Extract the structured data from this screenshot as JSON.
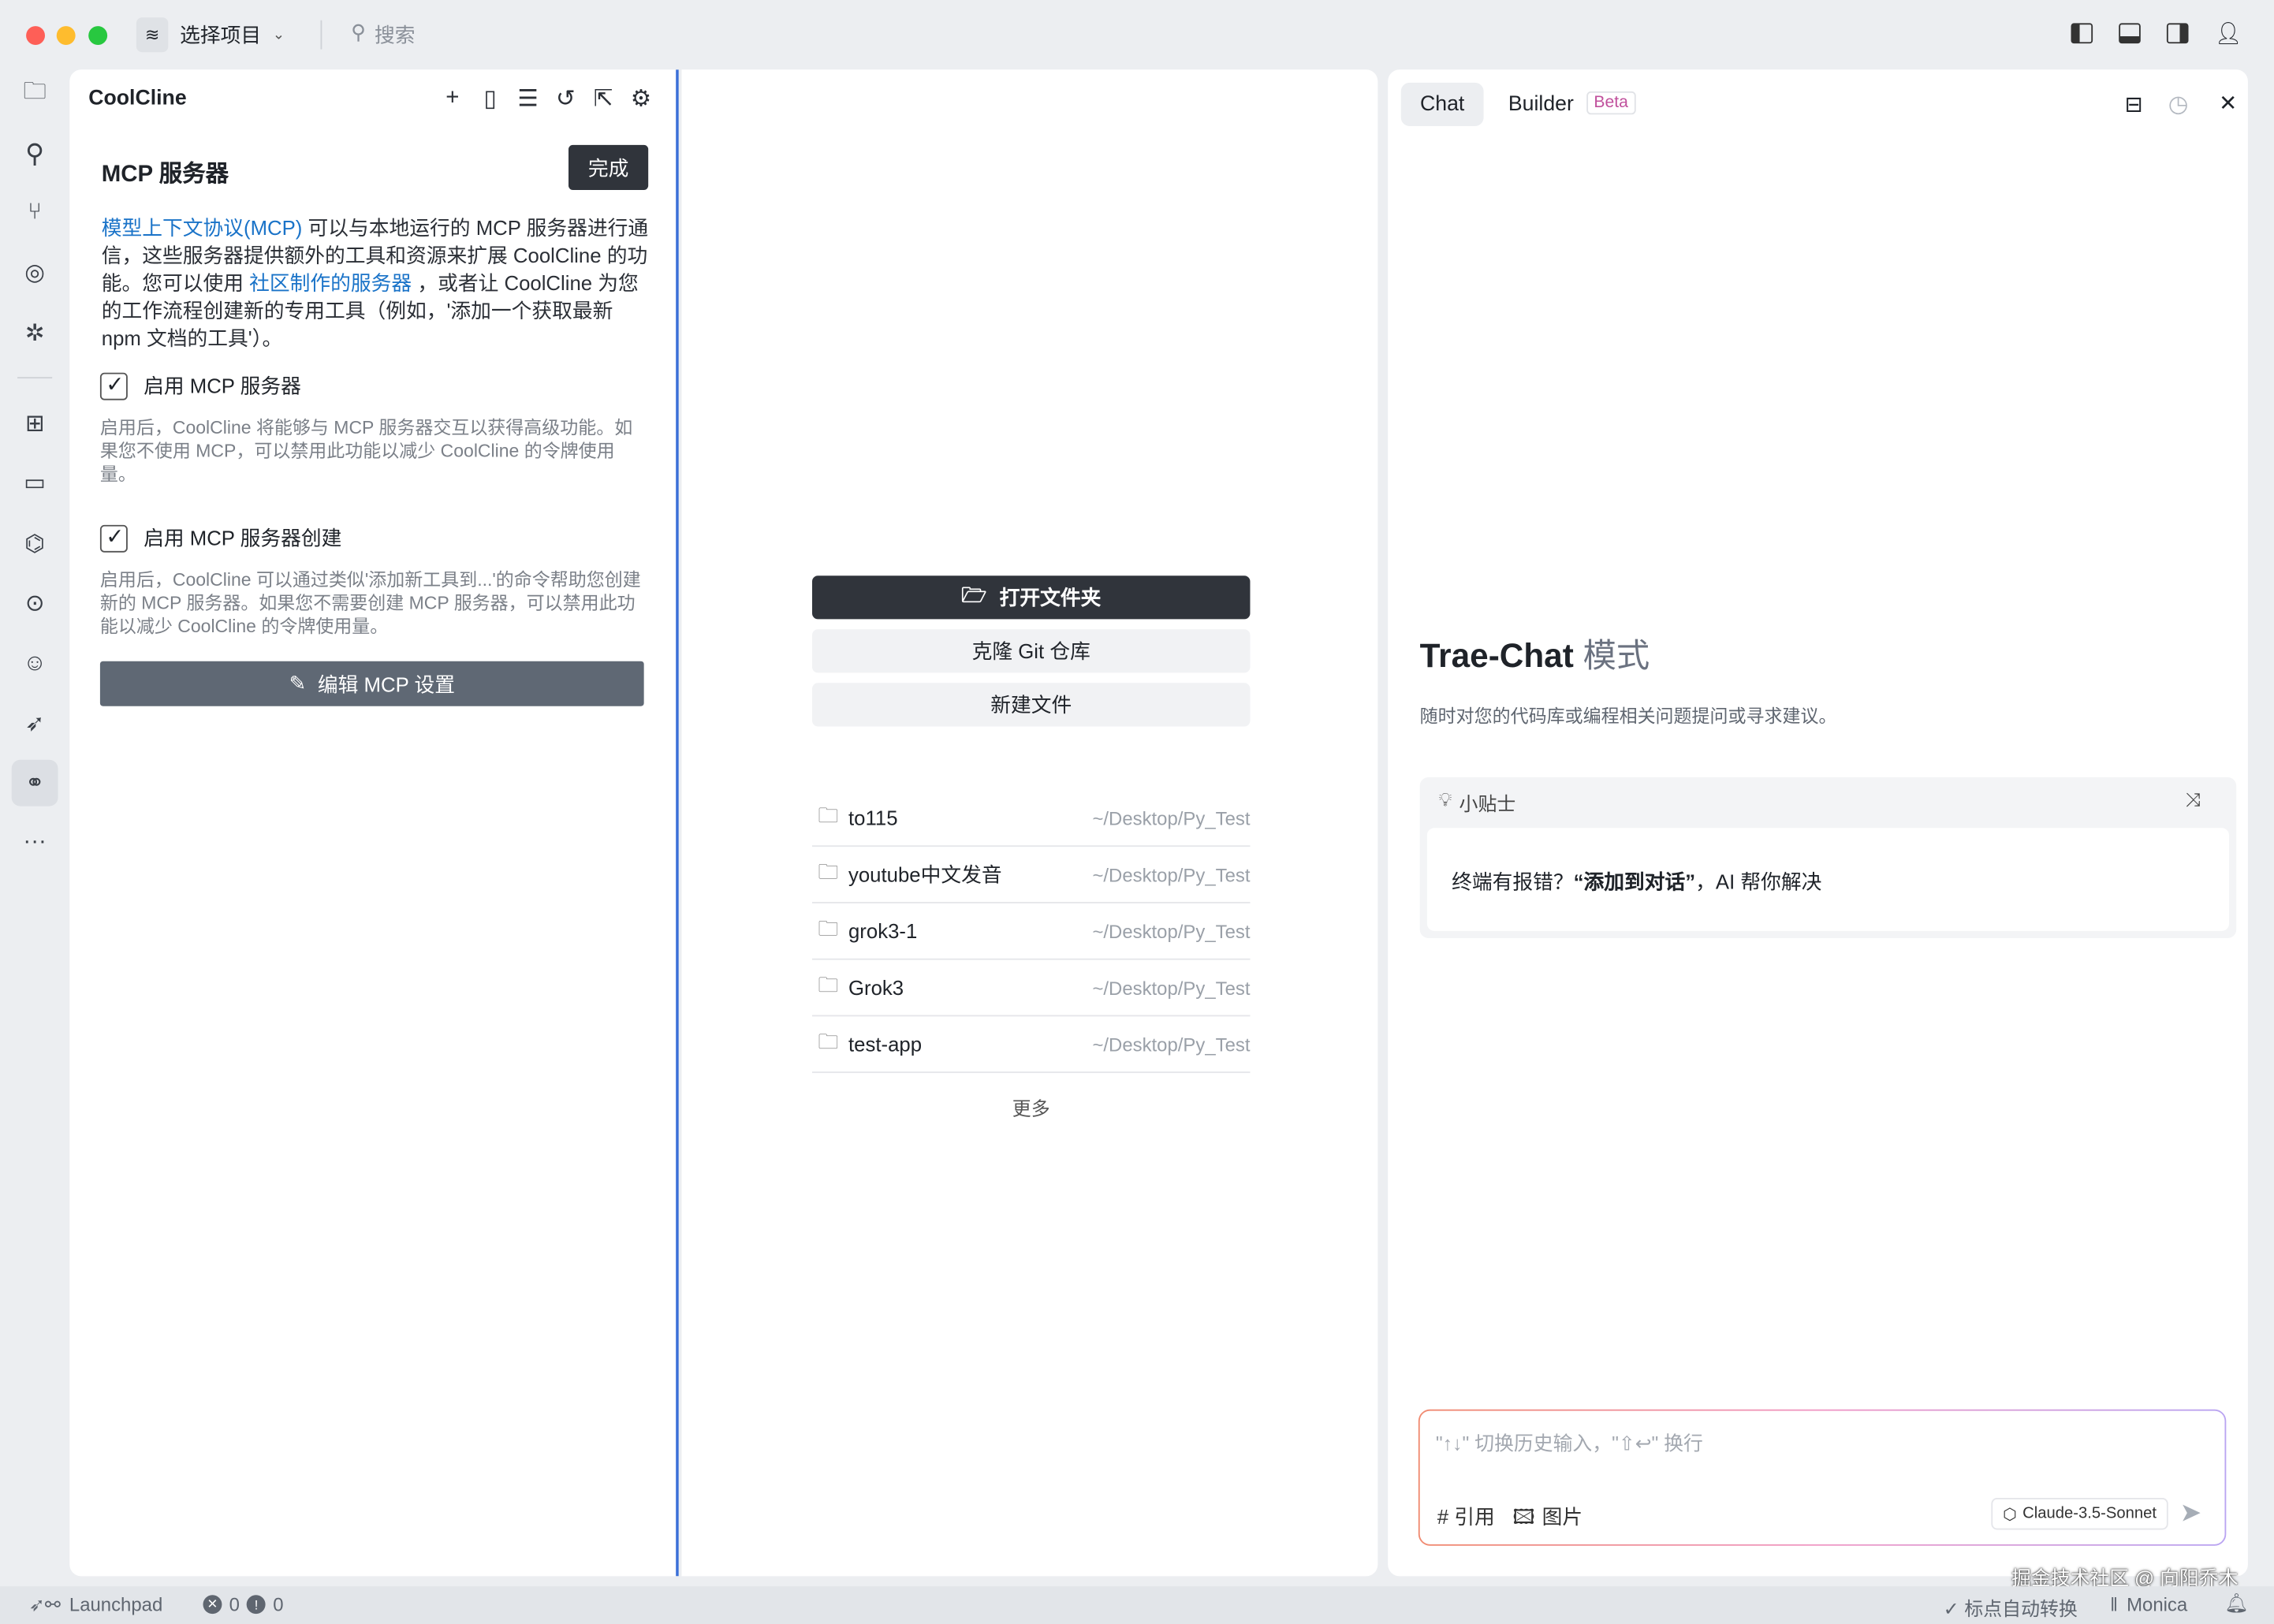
{
  "titlebar": {
    "project_label": "选择项目",
    "search_placeholder": "搜索"
  },
  "cline": {
    "title": "CoolCline",
    "mcp_title": "MCP 服务器",
    "done": "完成",
    "intro_link1": "模型上下文协议(MCP)",
    "intro_text1": " 可以与本地运行的 MCP 服务器进行通信，这些服务器提供额外的工具和资源来扩展 CoolCline 的功能。您可以使用 ",
    "intro_link2": "社区制作的服务器",
    "intro_text2": " ，或者让 CoolCline 为您的工作流程创建新的专用工具（例如，'添加一个获取最新 npm 文档的工具'）。",
    "opt1_label": "启用 MCP 服务器",
    "opt1_checked": true,
    "opt1_desc": "启用后，CoolCline 将能够与 MCP 服务器交互以获得高级功能。如果您不使用 MCP，可以禁用此功能以减少 CoolCline 的令牌使用量。",
    "opt2_label": "启用 MCP 服务器创建",
    "opt2_checked": true,
    "opt2_desc": "启用后，CoolCline 可以通过类似'添加新工具到...'的命令帮助您创建新的 MCP 服务器。如果您不需要创建 MCP 服务器，可以禁用此功能以减少 CoolCline 的令牌使用量。",
    "edit_button": "编辑 MCP 设置"
  },
  "welcome": {
    "open_folder": "打开文件夹",
    "clone_git": "克隆 Git 仓库",
    "new_file": "新建文件",
    "recent": [
      {
        "name": "to115",
        "path": "~/Desktop/Py_Test"
      },
      {
        "name": "youtube中文发音",
        "path": "~/Desktop/Py_Test"
      },
      {
        "name": "grok3-1",
        "path": "~/Desktop/Py_Test"
      },
      {
        "name": "Grok3",
        "path": "~/Desktop/Py_Test"
      },
      {
        "name": "test-app",
        "path": "~/Desktop/Py_Test"
      }
    ],
    "more": "更多"
  },
  "chat": {
    "tab_chat": "Chat",
    "tab_builder": "Builder",
    "beta": "Beta",
    "heading": "Trae-Chat",
    "heading_mode": "模式",
    "subtitle": "随时对您的代码库或编程相关问题提问或寻求建议。",
    "tip_title": "小贴士",
    "tip_pre": "终端有报错？",
    "tip_bold": "“添加到对话”",
    "tip_post": "，AI 帮你解决",
    "input_placeholder": "\"↑↓\" 切换历史输入，\"⇧↩\" 换行",
    "ref": "# 引用",
    "image": "图片",
    "model": "Claude-3.5-Sonnet"
  },
  "statusbar": {
    "launchpad": "Launchpad",
    "errors": "0",
    "warnings": "0",
    "punct": "✓ 标点自动转换",
    "monica": "Monica",
    "watermark": "掘金技术社区 @ 向阳乔木"
  },
  "colors": {
    "accent": "#1a73c8",
    "dark_button": "#30343b",
    "edit_button": "#5f6874"
  }
}
